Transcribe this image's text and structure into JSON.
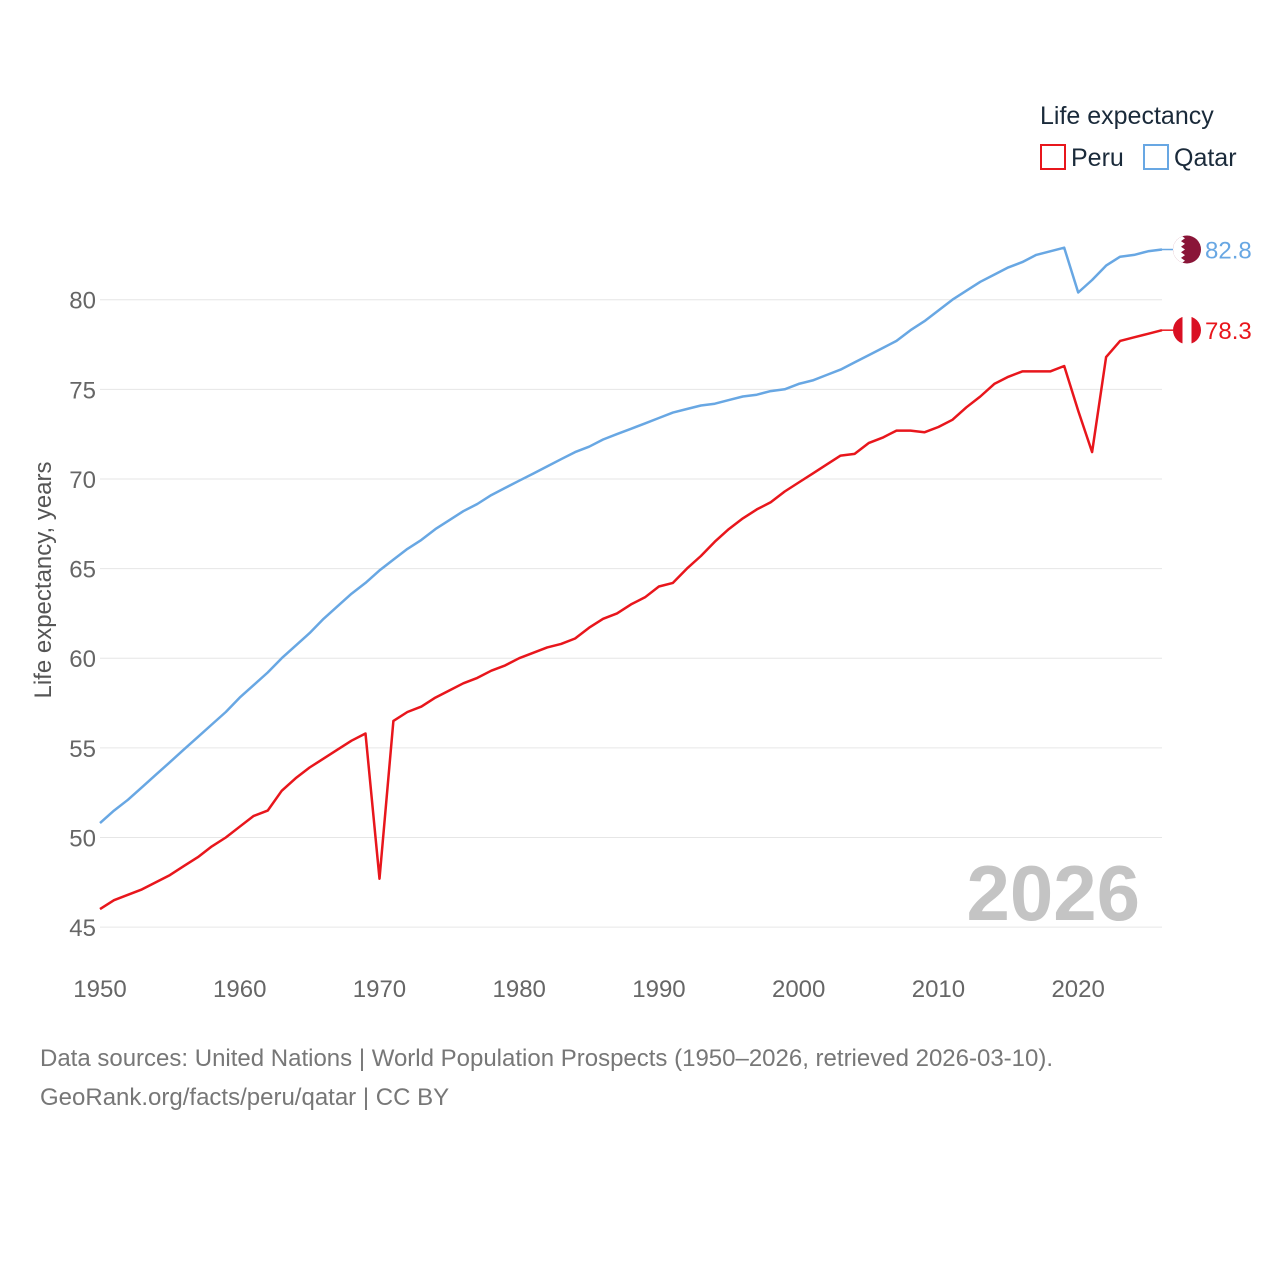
{
  "chart_data": {
    "type": "line",
    "title": "",
    "xlabel": "",
    "ylabel": "Life expectancy, years",
    "xlim": [
      1950,
      2026
    ],
    "ylim": [
      44,
      84
    ],
    "x_ticks": [
      1950,
      1960,
      1970,
      1980,
      1990,
      2000,
      2010,
      2020
    ],
    "y_ticks": [
      45,
      50,
      55,
      60,
      65,
      70,
      75,
      80
    ],
    "grid": true,
    "legend": {
      "title": "Life expectancy",
      "placement": "top-right",
      "entries": [
        "Peru",
        "Qatar"
      ]
    },
    "year_watermark": "2026",
    "series": [
      {
        "name": "Peru",
        "color": "#e8161c",
        "flag_icon": "peru-flag-icon",
        "end_label": "78.3",
        "x": [
          1950,
          1951,
          1952,
          1953,
          1954,
          1955,
          1956,
          1957,
          1958,
          1959,
          1960,
          1961,
          1962,
          1963,
          1964,
          1965,
          1966,
          1967,
          1968,
          1969,
          1970,
          1971,
          1972,
          1973,
          1974,
          1975,
          1976,
          1977,
          1978,
          1979,
          1980,
          1981,
          1982,
          1983,
          1984,
          1985,
          1986,
          1987,
          1988,
          1989,
          1990,
          1991,
          1992,
          1993,
          1994,
          1995,
          1996,
          1997,
          1998,
          1999,
          2000,
          2001,
          2002,
          2003,
          2004,
          2005,
          2006,
          2007,
          2008,
          2009,
          2010,
          2011,
          2012,
          2013,
          2014,
          2015,
          2016,
          2017,
          2018,
          2019,
          2020,
          2021,
          2022,
          2023,
          2024,
          2025,
          2026
        ],
        "values": [
          46.0,
          46.5,
          46.8,
          47.1,
          47.5,
          47.9,
          48.4,
          48.9,
          49.5,
          50.0,
          50.6,
          51.2,
          51.5,
          52.6,
          53.3,
          53.9,
          54.4,
          54.9,
          55.4,
          55.8,
          47.7,
          56.5,
          57.0,
          57.3,
          57.8,
          58.2,
          58.6,
          58.9,
          59.3,
          59.6,
          60.0,
          60.3,
          60.6,
          60.8,
          61.1,
          61.7,
          62.2,
          62.5,
          63.0,
          63.4,
          64.0,
          64.2,
          65.0,
          65.7,
          66.5,
          67.2,
          67.8,
          68.3,
          68.7,
          69.3,
          69.8,
          70.3,
          70.8,
          71.3,
          71.4,
          72.0,
          72.3,
          72.7,
          72.7,
          72.6,
          72.9,
          73.3,
          74.0,
          74.6,
          75.3,
          75.7,
          76.0,
          76.0,
          76.0,
          76.3,
          73.8,
          71.5,
          76.8,
          77.7,
          77.9,
          78.1,
          78.3
        ]
      },
      {
        "name": "Qatar",
        "color": "#68a7e3",
        "flag_icon": "qatar-flag-icon",
        "end_label": "82.8",
        "x": [
          1950,
          1951,
          1952,
          1953,
          1954,
          1955,
          1956,
          1957,
          1958,
          1959,
          1960,
          1961,
          1962,
          1963,
          1964,
          1965,
          1966,
          1967,
          1968,
          1969,
          1970,
          1971,
          1972,
          1973,
          1974,
          1975,
          1976,
          1977,
          1978,
          1979,
          1980,
          1981,
          1982,
          1983,
          1984,
          1985,
          1986,
          1987,
          1988,
          1989,
          1990,
          1991,
          1992,
          1993,
          1994,
          1995,
          1996,
          1997,
          1998,
          1999,
          2000,
          2001,
          2002,
          2003,
          2004,
          2005,
          2006,
          2007,
          2008,
          2009,
          2010,
          2011,
          2012,
          2013,
          2014,
          2015,
          2016,
          2017,
          2018,
          2019,
          2020,
          2021,
          2022,
          2023,
          2024,
          2025,
          2026
        ],
        "values": [
          50.8,
          51.5,
          52.1,
          52.8,
          53.5,
          54.2,
          54.9,
          55.6,
          56.3,
          57.0,
          57.8,
          58.5,
          59.2,
          60.0,
          60.7,
          61.4,
          62.2,
          62.9,
          63.6,
          64.2,
          64.9,
          65.5,
          66.1,
          66.6,
          67.2,
          67.7,
          68.2,
          68.6,
          69.1,
          69.5,
          69.9,
          70.3,
          70.7,
          71.1,
          71.5,
          71.8,
          72.2,
          72.5,
          72.8,
          73.1,
          73.4,
          73.7,
          73.9,
          74.1,
          74.2,
          74.4,
          74.6,
          74.7,
          74.9,
          75.0,
          75.3,
          75.5,
          75.8,
          76.1,
          76.5,
          76.9,
          77.3,
          77.7,
          78.3,
          78.8,
          79.4,
          80.0,
          80.5,
          81.0,
          81.4,
          81.8,
          82.1,
          82.5,
          82.7,
          82.9,
          80.4,
          81.1,
          81.9,
          82.4,
          82.5,
          82.7,
          82.8
        ]
      }
    ]
  },
  "footer": {
    "line1": "Data sources: United Nations | World Population Prospects (1950–2026, retrieved 2026-03-10).",
    "line2": "GeoRank.org/facts/peru/qatar | CC BY"
  }
}
